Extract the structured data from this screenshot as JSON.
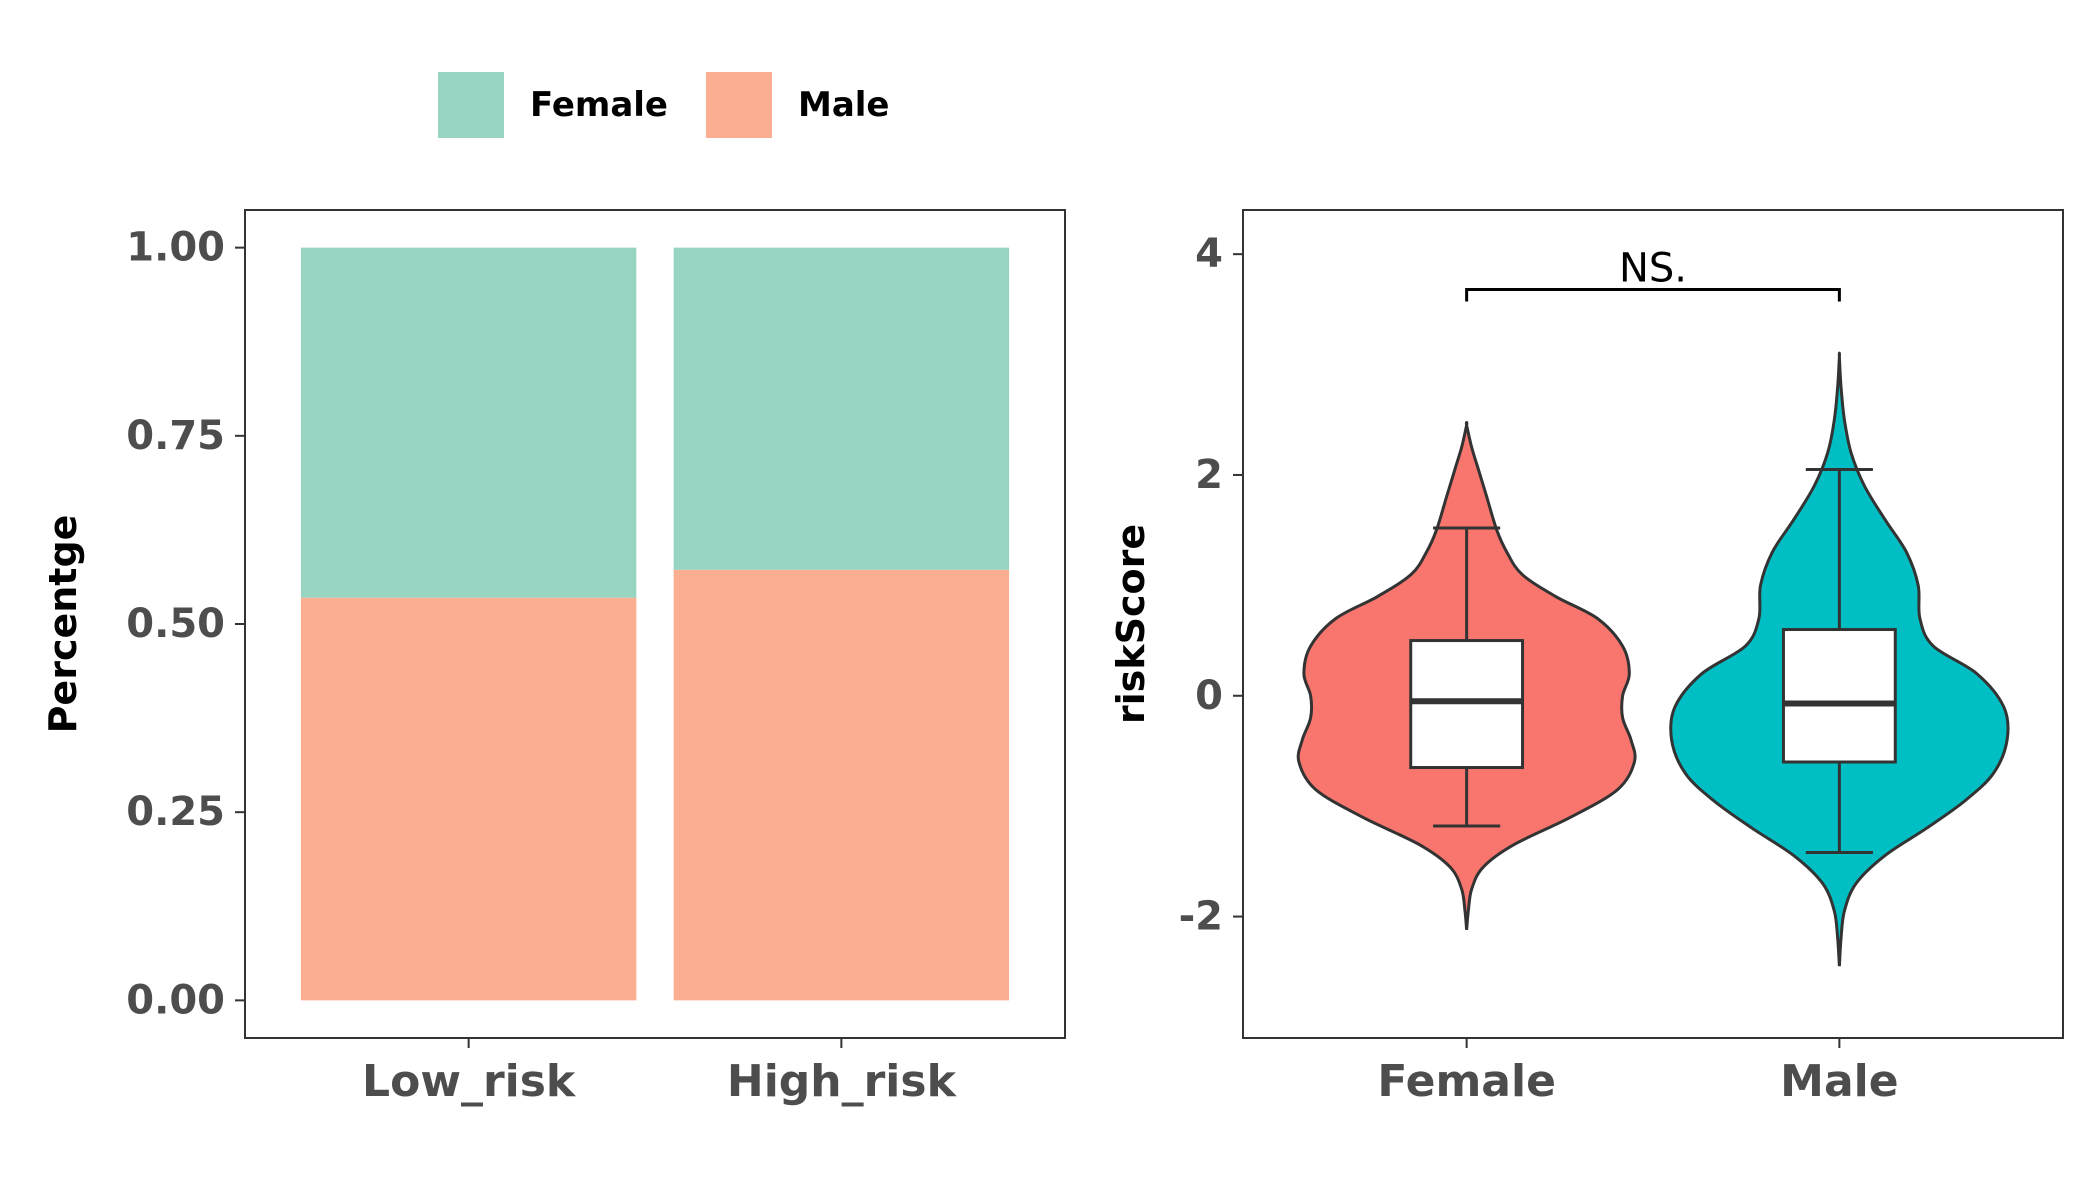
{
  "legend": {
    "items": [
      {
        "label": "Female",
        "color": "#98D4C2"
      },
      {
        "label": "Male",
        "color": "#FBAE91"
      }
    ],
    "position": "top"
  },
  "chart_data": [
    {
      "type": "bar",
      "stacked": true,
      "categories": [
        "Low_risk",
        "High_risk"
      ],
      "series": [
        {
          "name": "Male",
          "values": [
            0.535,
            0.572
          ],
          "color": "#FBAE91"
        },
        {
          "name": "Female",
          "values": [
            0.465,
            0.428
          ],
          "color": "#98D4C2"
        }
      ],
      "ylabel": "Percentge",
      "ylim": [
        -0.05,
        1.05
      ],
      "yticks": [
        0,
        0.25,
        0.5,
        0.75,
        1
      ],
      "yticklabels": [
        "0.00",
        "0.25",
        "0.50",
        "0.75",
        "1.00"
      ],
      "grid": false
    },
    {
      "type": "violin",
      "categories": [
        "Female",
        "Male"
      ],
      "ylabel": "riskScore",
      "ylim": [
        -3.1,
        4.4
      ],
      "yticks": [
        -2,
        0,
        2,
        4
      ],
      "yticklabels": [
        "-2",
        "0",
        "2",
        "4"
      ],
      "grid": false,
      "groups": [
        {
          "name": "Female",
          "color": "#F8766D",
          "box": {
            "whisker_low": -1.18,
            "q1": -0.65,
            "median": -0.05,
            "q3": 0.5,
            "whisker_high": 1.52
          },
          "violin_range": [
            -2.12,
            2.45
          ],
          "density_profile": [
            [
              -2.12,
              0.0
            ],
            [
              -1.95,
              0.01
            ],
            [
              -1.75,
              0.03
            ],
            [
              -1.55,
              0.1
            ],
            [
              -1.35,
              0.28
            ],
            [
              -1.1,
              0.62
            ],
            [
              -0.85,
              0.9
            ],
            [
              -0.6,
              1.0
            ],
            [
              -0.4,
              0.98
            ],
            [
              -0.2,
              0.93
            ],
            [
              0.0,
              0.93
            ],
            [
              0.2,
              0.97
            ],
            [
              0.45,
              0.93
            ],
            [
              0.7,
              0.78
            ],
            [
              0.9,
              0.53
            ],
            [
              1.1,
              0.33
            ],
            [
              1.3,
              0.24
            ],
            [
              1.5,
              0.18
            ],
            [
              1.8,
              0.12
            ],
            [
              2.05,
              0.07
            ],
            [
              2.25,
              0.03
            ],
            [
              2.45,
              0.0
            ]
          ]
        },
        {
          "name": "Male",
          "color": "#00BFC4",
          "box": {
            "whisker_low": -1.42,
            "q1": -0.6,
            "median": -0.07,
            "q3": 0.6,
            "whisker_high": 2.05
          },
          "violin_range": [
            -2.45,
            3.07
          ],
          "density_profile": [
            [
              -2.45,
              0.0
            ],
            [
              -2.2,
              0.01
            ],
            [
              -1.95,
              0.03
            ],
            [
              -1.7,
              0.1
            ],
            [
              -1.45,
              0.27
            ],
            [
              -1.2,
              0.52
            ],
            [
              -0.95,
              0.75
            ],
            [
              -0.7,
              0.92
            ],
            [
              -0.4,
              1.0
            ],
            [
              -0.1,
              0.98
            ],
            [
              0.2,
              0.82
            ],
            [
              0.45,
              0.56
            ],
            [
              0.7,
              0.48
            ],
            [
              1.0,
              0.47
            ],
            [
              1.3,
              0.4
            ],
            [
              1.6,
              0.27
            ],
            [
              1.9,
              0.15
            ],
            [
              2.2,
              0.07
            ],
            [
              2.5,
              0.03
            ],
            [
              2.8,
              0.01
            ],
            [
              3.07,
              0.0
            ]
          ]
        }
      ],
      "comparison": {
        "between": [
          "Female",
          "Male"
        ],
        "label": "NS.",
        "y": 3.68
      }
    }
  ]
}
